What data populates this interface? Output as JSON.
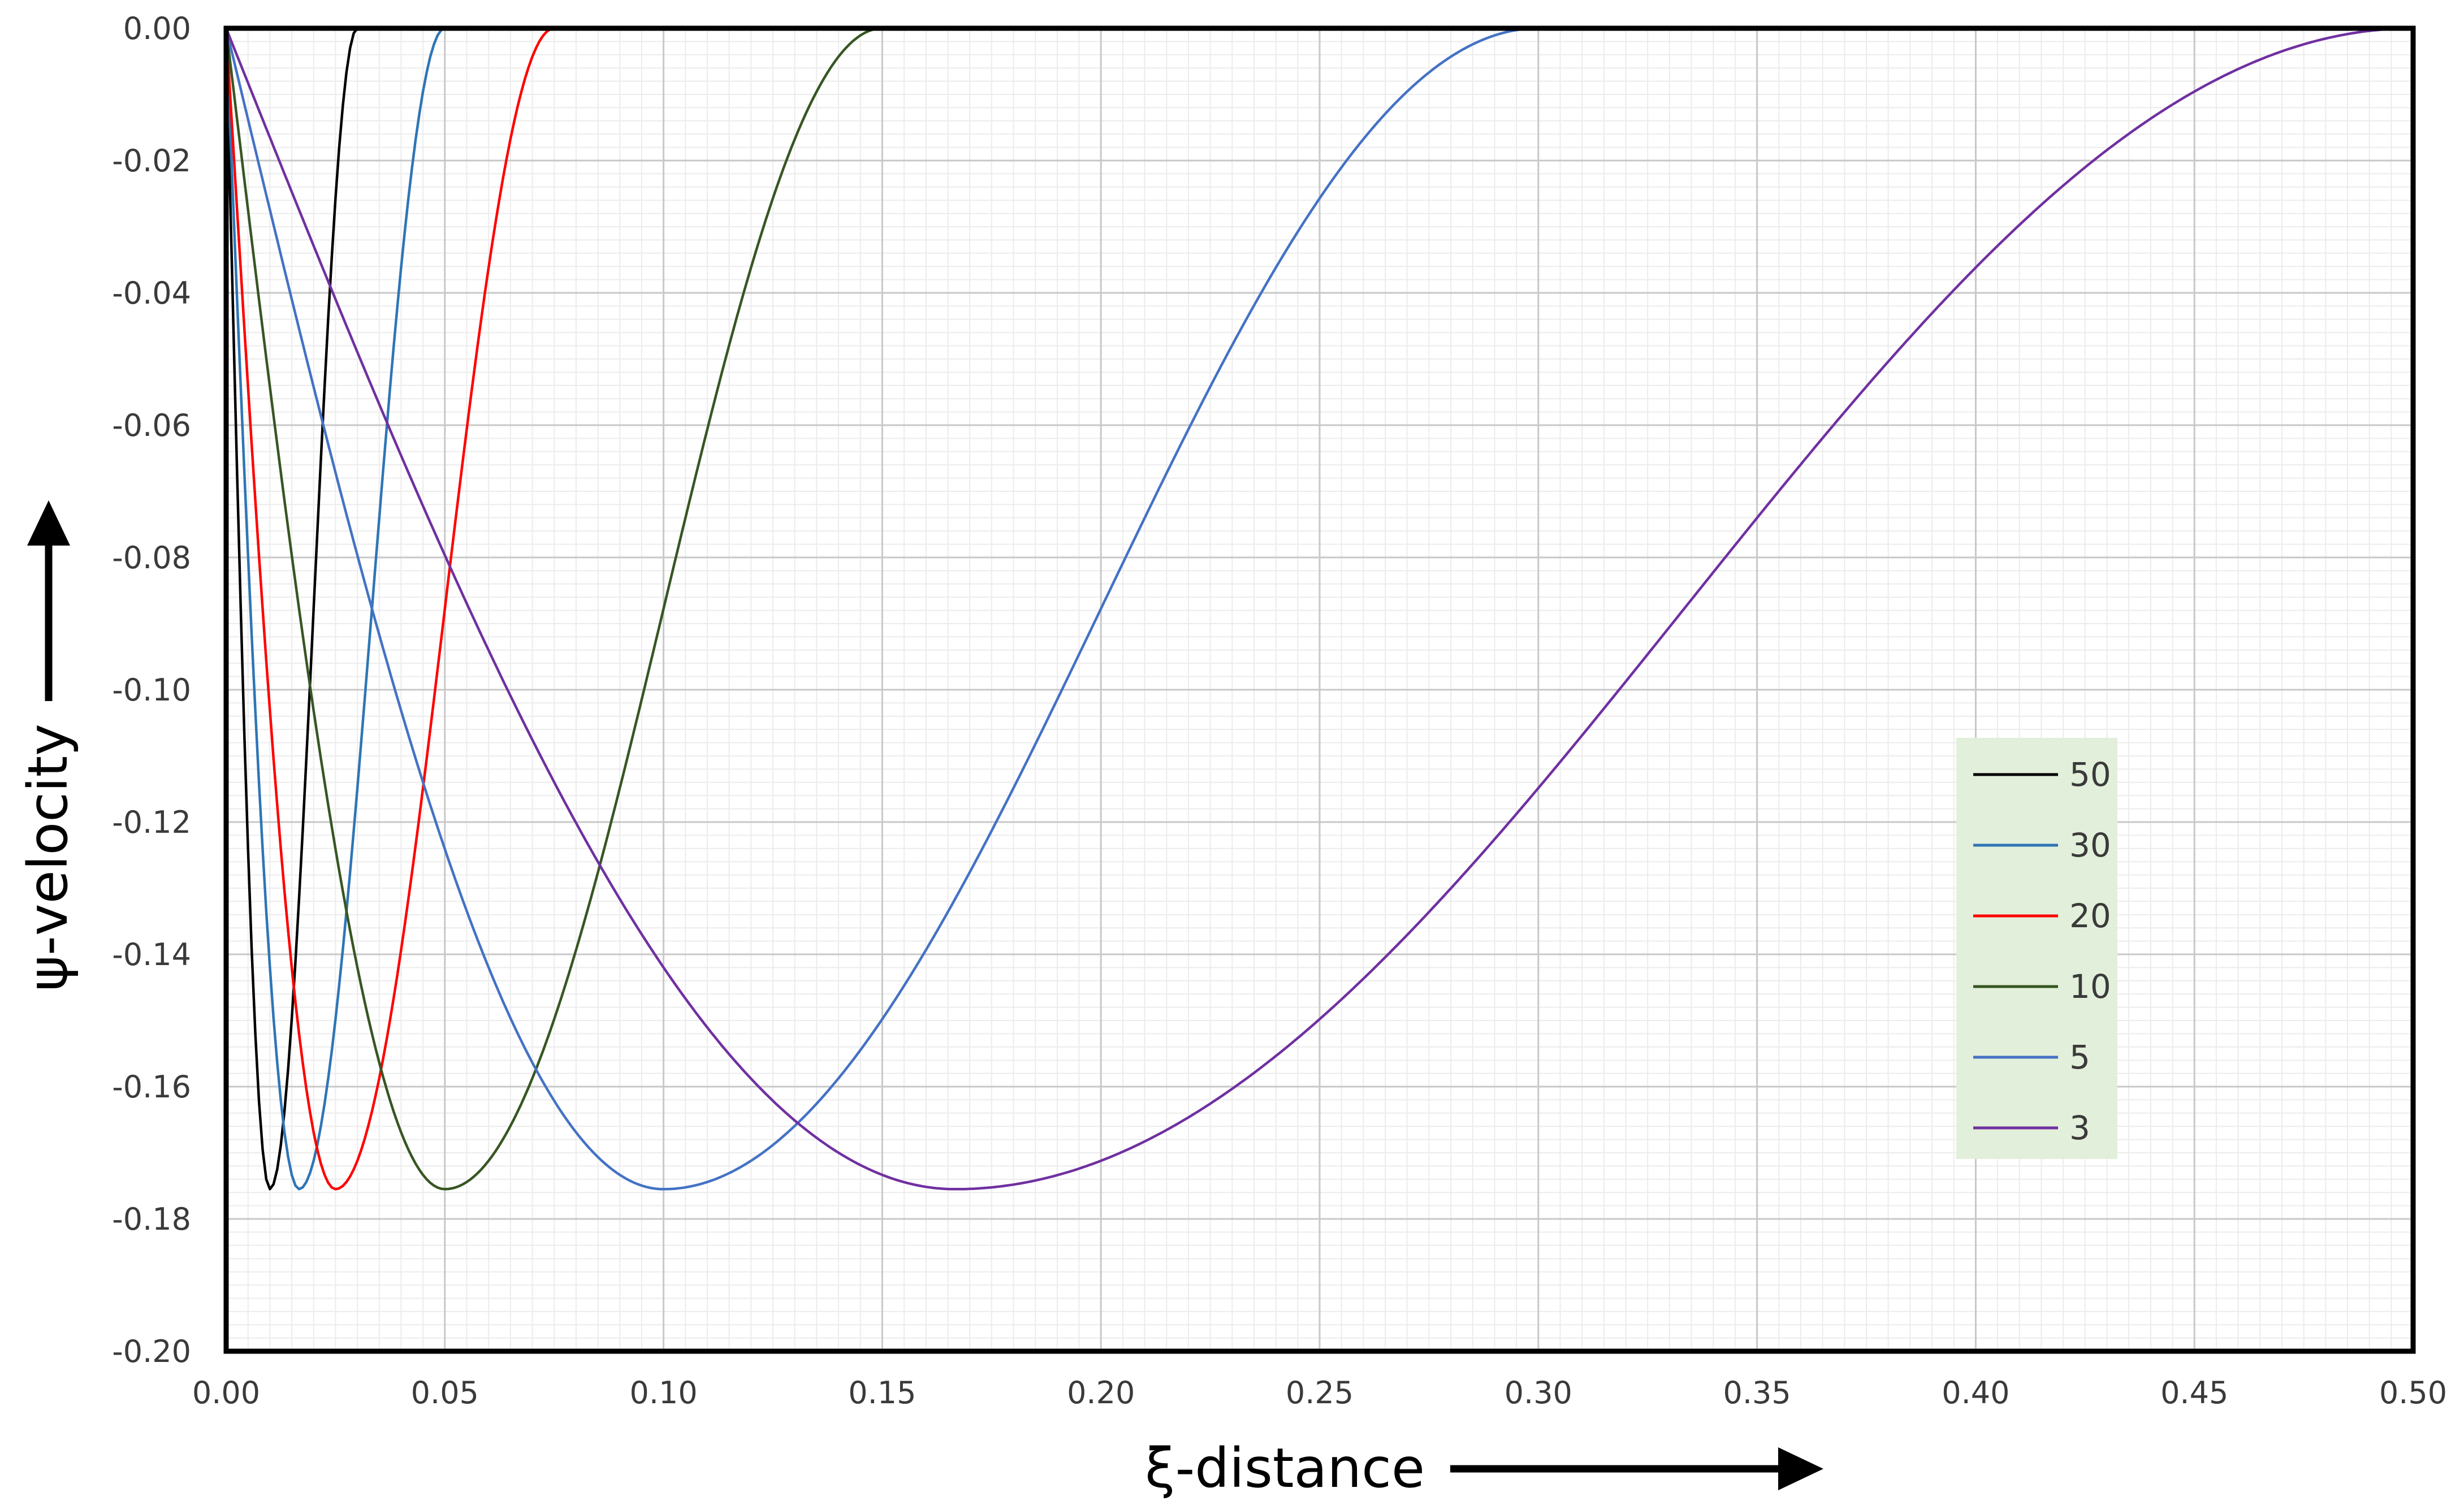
{
  "chart_data": {
    "type": "line",
    "title": "",
    "xlabel": "ξ-distance",
    "ylabel": "ψ-velocity",
    "xlim": [
      0,
      0.5
    ],
    "ylim": [
      -0.2,
      0
    ],
    "x_ticks": [
      "0.00",
      "0.05",
      "0.10",
      "0.15",
      "0.20",
      "0.25",
      "0.30",
      "0.35",
      "0.40",
      "0.45",
      "0.50"
    ],
    "y_ticks": [
      "0.00",
      "-0.02",
      "-0.04",
      "-0.06",
      "-0.08",
      "-0.10",
      "-0.12",
      "-0.14",
      "-0.16",
      "-0.18",
      "-0.20"
    ],
    "grid": true,
    "legend_position": "right-center",
    "legend_background": "#e2efda",
    "series": [
      {
        "name": "50",
        "color": "#000000",
        "n": 50,
        "min_value": -0.1755,
        "min_x": 0.01,
        "support_end": 0.03
      },
      {
        "name": "30",
        "color": "#2e75b6",
        "n": 30,
        "min_value": -0.1755,
        "min_x": 0.0167,
        "support_end": 0.05
      },
      {
        "name": "20",
        "color": "#ff0000",
        "n": 20,
        "min_value": -0.1755,
        "min_x": 0.025,
        "support_end": 0.075
      },
      {
        "name": "10",
        "color": "#375623",
        "n": 10,
        "min_value": -0.1755,
        "min_x": 0.05,
        "support_end": 0.15
      },
      {
        "name": "5",
        "color": "#4472c4",
        "n": 5,
        "min_value": -0.1755,
        "min_x": 0.1,
        "support_end": 0.3
      },
      {
        "name": "3",
        "color": "#7030a0",
        "n": 3,
        "min_value": -0.1755,
        "min_x": 0.1667,
        "support_end": 0.5
      }
    ]
  }
}
